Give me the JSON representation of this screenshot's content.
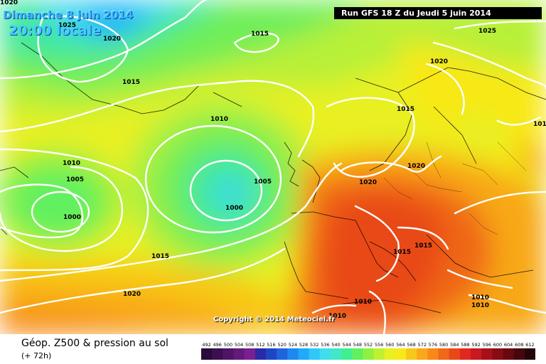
{
  "map": {
    "date_line": "Dimanche 8 juin 2014",
    "time_line": "20:00 locale",
    "run_info": "Run GFS 18 Z du Jeudi 5 juin 2014",
    "copyright": "Copyright © 2014 Meteociel.fr",
    "product": "Géop. Z500 & pression au sol",
    "lead_time": "(+ 72h)",
    "isobar_labels": [
      "1025",
      "1020",
      "1015",
      "1015",
      "1025",
      "1015",
      "1010",
      "1020",
      "1015",
      "1010",
      "1005",
      "1000",
      "1005",
      "1000",
      "1020",
      "1015",
      "1020",
      "1015",
      "1015",
      "1010",
      "1010",
      "1010",
      "1010",
      "1020",
      "1020"
    ],
    "legend_values": [
      "492",
      "496",
      "500",
      "504",
      "508",
      "512",
      "516",
      "520",
      "524",
      "528",
      "532",
      "536",
      "540",
      "544",
      "548",
      "552",
      "556",
      "560",
      "564",
      "568",
      "572",
      "576",
      "580",
      "584",
      "588",
      "592",
      "596",
      "600",
      "604",
      "608",
      "612"
    ],
    "legend_colors": [
      "#2a0a3a",
      "#3c0f50",
      "#4f1466",
      "#631a7a",
      "#7a2090",
      "#2a2aa8",
      "#1e46c4",
      "#1e64dc",
      "#1e88ee",
      "#20aaf8",
      "#30c8f8",
      "#40dcf0",
      "#40e8c8",
      "#40f090",
      "#60f060",
      "#90f040",
      "#c0f030",
      "#e8f020",
      "#f8e818",
      "#f8c818",
      "#f8a818",
      "#f88818",
      "#f06818",
      "#e84818",
      "#e02820",
      "#c81820",
      "#a81018",
      "#880c14",
      "#680810",
      "#48060c",
      "#240408"
    ]
  }
}
